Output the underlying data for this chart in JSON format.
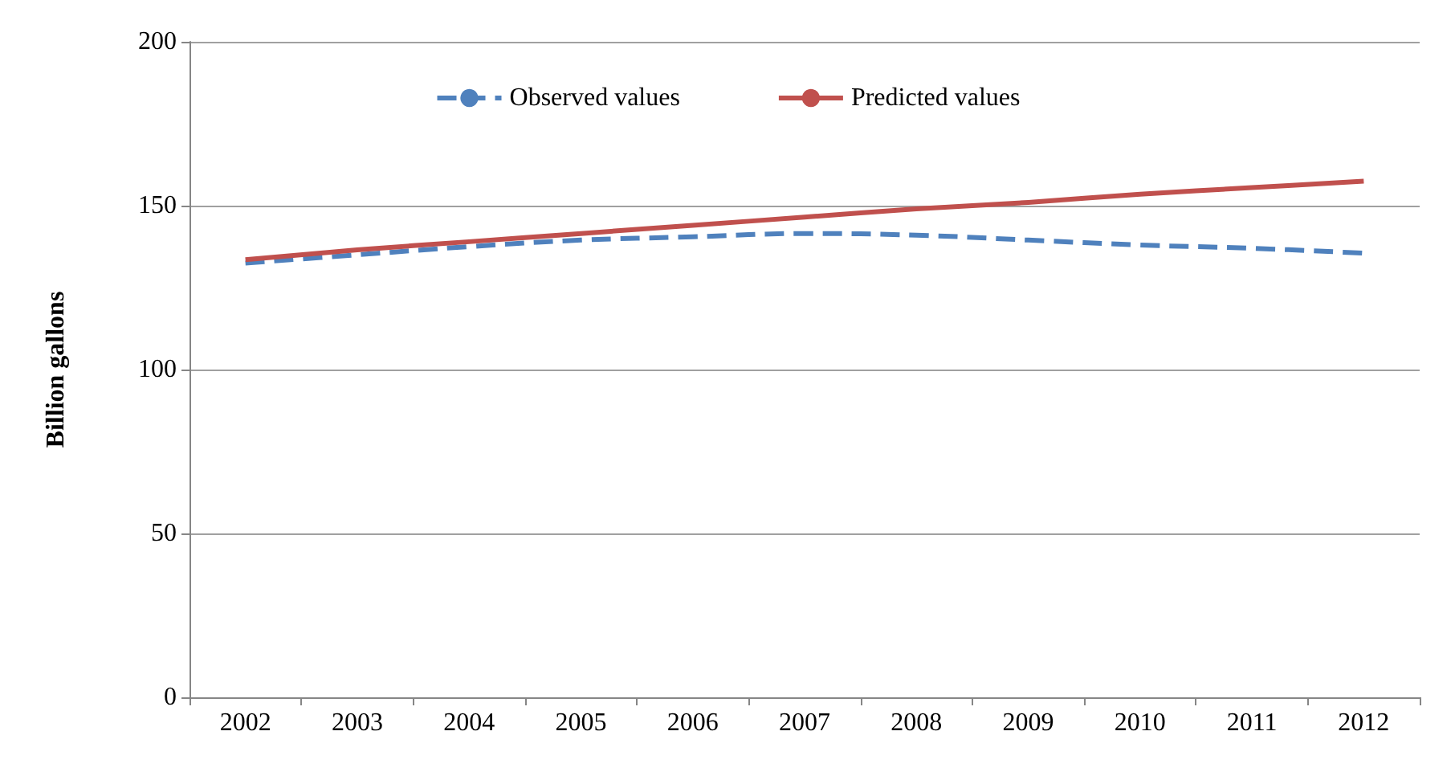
{
  "chart_data": {
    "type": "line",
    "ylabel": "Billion gallons",
    "categories": [
      "2002",
      "2003",
      "2004",
      "2005",
      "2006",
      "2007",
      "2008",
      "2009",
      "2010",
      "2011",
      "2012"
    ],
    "series": [
      {
        "name": "Observed values",
        "color": "#4f81bd",
        "line_style": "dashed",
        "values": [
          132.5,
          135,
          137.5,
          139.5,
          140.5,
          141.5,
          141,
          139.5,
          138,
          137,
          135.5
        ]
      },
      {
        "name": "Predicted values",
        "color": "#c0504d",
        "line_style": "solid",
        "values": [
          133.5,
          136.5,
          139,
          141.5,
          144,
          146.5,
          149,
          151,
          153.5,
          155.5,
          157.5
        ]
      }
    ],
    "ylim": [
      0,
      200
    ],
    "yticks": [
      0,
      50,
      100,
      150,
      200
    ],
    "grid": "y",
    "legend": "top",
    "marker": "none"
  }
}
